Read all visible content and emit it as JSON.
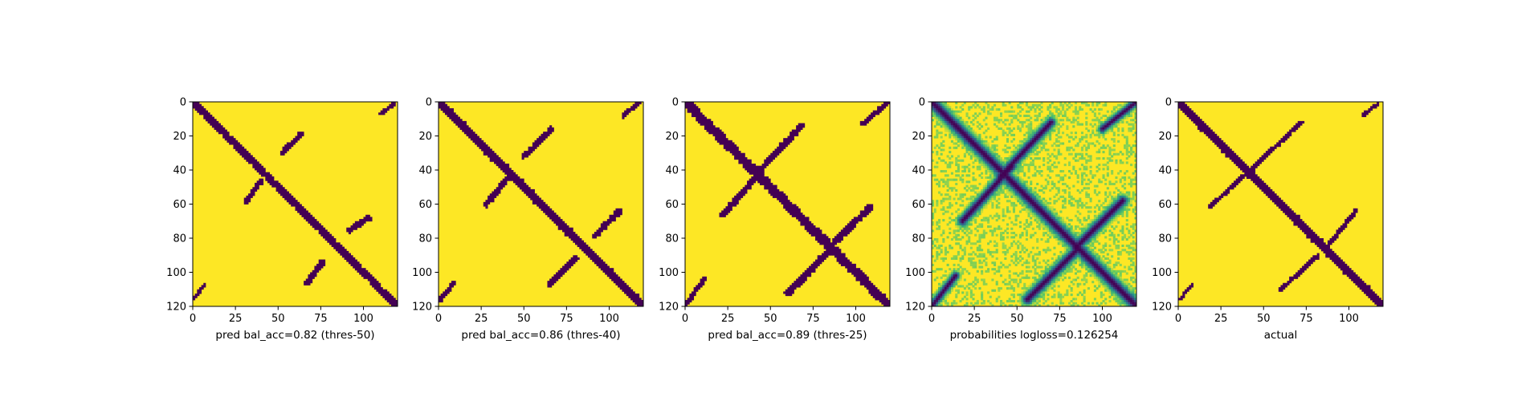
{
  "figure": {
    "background": "#ffffff",
    "colormap": [
      "#440154",
      "#3b528b",
      "#21918c",
      "#5ec962",
      "#fde725"
    ]
  },
  "chart_data": [
    {
      "type": "heatmap",
      "render": "binary",
      "xlabel": "pred bal_acc=0.82 (thres-50)",
      "xticks": [
        0,
        25,
        50,
        75,
        100
      ],
      "yticks": [
        0,
        20,
        40,
        60,
        80,
        100,
        120
      ],
      "xlim": [
        0,
        120
      ],
      "ylim": [
        120,
        0
      ],
      "features": {
        "main_diagonal": {
          "from": [
            0,
            0
          ],
          "to": [
            120,
            120
          ],
          "width": 2.2
        },
        "contacts": [
          {
            "from": [
              52,
              30
            ],
            "to": [
              63,
              19
            ],
            "width": 1.6
          },
          {
            "from": [
              31,
              59
            ],
            "to": [
              40,
              46
            ],
            "width": 1.6
          },
          {
            "from": [
              92,
              75
            ],
            "to": [
              103,
              68
            ],
            "width": 1.8
          },
          {
            "from": [
              67,
              106
            ],
            "to": [
              76,
              94
            ],
            "width": 1.8
          },
          {
            "from": [
              1,
              115
            ],
            "to": [
              7,
              107
            ],
            "width": 1.2
          },
          {
            "from": [
              110,
              7
            ],
            "to": [
              118,
              1
            ],
            "width": 1.2
          }
        ]
      }
    },
    {
      "type": "heatmap",
      "render": "binary",
      "xlabel": "pred bal_acc=0.86 (thres-40)",
      "xticks": [
        0,
        25,
        50,
        75,
        100
      ],
      "yticks": [
        0,
        20,
        40,
        60,
        80,
        100,
        120
      ],
      "xlim": [
        0,
        120
      ],
      "ylim": [
        120,
        0
      ],
      "features": {
        "main_diagonal": {
          "from": [
            0,
            0
          ],
          "to": [
            120,
            120
          ],
          "width": 2.4
        },
        "contacts": [
          {
            "from": [
              50,
              32
            ],
            "to": [
              66,
              16
            ],
            "width": 1.6
          },
          {
            "from": [
              28,
              60
            ],
            "to": [
              41,
              44
            ],
            "width": 1.7
          },
          {
            "from": [
              91,
              79
            ],
            "to": [
              106,
              64
            ],
            "width": 1.9
          },
          {
            "from": [
              65,
              107
            ],
            "to": [
              80,
              92
            ],
            "width": 1.9
          },
          {
            "from": [
              1,
              116
            ],
            "to": [
              9,
              106
            ],
            "width": 1.3
          },
          {
            "from": [
              108,
              8
            ],
            "to": [
              118,
              0
            ],
            "width": 1.3
          }
        ]
      }
    },
    {
      "type": "heatmap",
      "render": "binary",
      "xlabel": "pred bal_acc=0.89 (thres-25)",
      "xticks": [
        0,
        25,
        50,
        75,
        100
      ],
      "yticks": [
        0,
        20,
        40,
        60,
        80,
        100,
        120
      ],
      "xlim": [
        0,
        120
      ],
      "ylim": [
        120,
        0
      ],
      "features": {
        "main_diagonal": {
          "from": [
            0,
            0
          ],
          "to": [
            120,
            120
          ],
          "width": 2.8
        },
        "contacts": [
          {
            "from": [
              44,
              40
            ],
            "to": [
              68,
              14
            ],
            "width": 1.9
          },
          {
            "from": [
              22,
              66
            ],
            "to": [
              45,
              40
            ],
            "width": 1.9
          },
          {
            "from": [
              88,
              82
            ],
            "to": [
              108,
              62
            ],
            "width": 2.1
          },
          {
            "from": [
              60,
              112
            ],
            "to": [
              84,
              88
            ],
            "width": 2.1
          },
          {
            "from": [
              0,
              119
            ],
            "to": [
              11,
              104
            ],
            "width": 1.5
          },
          {
            "from": [
              104,
              13
            ],
            "to": [
              119,
              0
            ],
            "width": 1.5
          }
        ]
      }
    },
    {
      "type": "heatmap",
      "render": "probabilities",
      "xlabel": "probabilities logloss=0.126254",
      "xticks": [
        0,
        25,
        50,
        75,
        100
      ],
      "yticks": [
        0,
        20,
        40,
        60,
        80,
        100,
        120
      ],
      "xlim": [
        0,
        120
      ],
      "ylim": [
        120,
        0
      ],
      "features": {
        "main_diagonal": {
          "from": [
            0,
            0
          ],
          "to": [
            120,
            120
          ],
          "width": 3.0
        },
        "contacts": [
          {
            "from": [
              40,
              44
            ],
            "to": [
              70,
              12
            ],
            "width": 2.4
          },
          {
            "from": [
              18,
              70
            ],
            "to": [
              47,
              38
            ],
            "width": 2.4
          },
          {
            "from": [
              84,
              86
            ],
            "to": [
              112,
              58
            ],
            "width": 2.6
          },
          {
            "from": [
              56,
              116
            ],
            "to": [
              86,
              86
            ],
            "width": 2.6
          },
          {
            "from": [
              0,
              120
            ],
            "to": [
              14,
              102
            ],
            "width": 2.0
          },
          {
            "from": [
              100,
              16
            ],
            "to": [
              120,
              0
            ],
            "width": 2.0
          }
        ]
      }
    },
    {
      "type": "heatmap",
      "render": "binary",
      "xlabel": "actual",
      "xticks": [
        0,
        25,
        50,
        75,
        100
      ],
      "yticks": [
        0,
        20,
        40,
        60,
        80,
        100,
        120
      ],
      "xlim": [
        0,
        120
      ],
      "ylim": [
        120,
        0
      ],
      "features": {
        "main_diagonal": {
          "from": [
            0,
            0
          ],
          "to": [
            120,
            120
          ],
          "width": 2.4
        },
        "contacts": [
          {
            "from": [
              38,
              44
            ],
            "to": [
              72,
              12
            ],
            "width": 1.2
          },
          {
            "from": [
              18,
              62
            ],
            "to": [
              42,
              40
            ],
            "width": 1.2
          },
          {
            "from": [
              86,
              86
            ],
            "to": [
              104,
              64
            ],
            "width": 1.3
          },
          {
            "from": [
              60,
              110
            ],
            "to": [
              82,
              90
            ],
            "width": 1.3
          },
          {
            "from": [
              1,
              116
            ],
            "to": [
              8,
              107
            ],
            "width": 1.0
          },
          {
            "from": [
              108,
              8
            ],
            "to": [
              117,
              1
            ],
            "width": 1.0
          }
        ]
      }
    }
  ]
}
